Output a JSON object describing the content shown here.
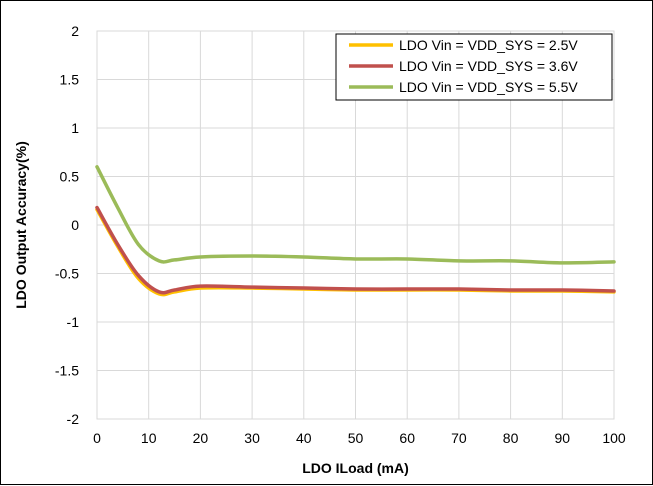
{
  "chart_data": {
    "type": "line",
    "title": "",
    "xlabel": "LDO ILoad (mA)",
    "ylabel": "LDO Output Accuracy(%)",
    "xlim": [
      0,
      100
    ],
    "ylim": [
      -2,
      2
    ],
    "x_ticks": [
      0,
      10,
      20,
      30,
      40,
      50,
      60,
      70,
      80,
      90,
      100
    ],
    "x_tick_labels": [
      "0",
      "10",
      "20",
      "30",
      "40",
      "50",
      "60",
      "70",
      "80",
      "90",
      "100"
    ],
    "y_ticks": [
      -2,
      -1.5,
      -1,
      -0.5,
      0,
      0.5,
      1,
      1.5,
      2
    ],
    "y_tick_labels": [
      "-2",
      "-1.5",
      "-1",
      "-0.5",
      "0",
      "0.5",
      "1",
      "1.5",
      "2"
    ],
    "grid": true,
    "legend_position": "top-right",
    "series": [
      {
        "name": "LDO Vin = VDD_SYS = 2.5V",
        "color": "#FFC000",
        "x": [
          0,
          4,
          8,
          12,
          15,
          20,
          30,
          40,
          50,
          60,
          70,
          80,
          90,
          100
        ],
        "y": [
          0.16,
          -0.22,
          -0.55,
          -0.71,
          -0.69,
          -0.65,
          -0.65,
          -0.66,
          -0.67,
          -0.67,
          -0.67,
          -0.68,
          -0.68,
          -0.69
        ]
      },
      {
        "name": "LDO Vin = VDD_SYS = 3.6V",
        "color": "#C0504D",
        "x": [
          0,
          4,
          8,
          12,
          15,
          20,
          30,
          40,
          50,
          60,
          70,
          80,
          90,
          100
        ],
        "y": [
          0.18,
          -0.2,
          -0.52,
          -0.69,
          -0.67,
          -0.63,
          -0.64,
          -0.65,
          -0.66,
          -0.66,
          -0.66,
          -0.67,
          -0.67,
          -0.68
        ]
      },
      {
        "name": "LDO Vin = VDD_SYS = 5.5V",
        "color": "#9BBB59",
        "x": [
          0,
          4,
          8,
          12,
          15,
          20,
          30,
          40,
          50,
          60,
          70,
          80,
          90,
          100
        ],
        "y": [
          0.6,
          0.18,
          -0.2,
          -0.37,
          -0.36,
          -0.33,
          -0.32,
          -0.33,
          -0.35,
          -0.35,
          -0.37,
          -0.37,
          -0.39,
          -0.38
        ]
      }
    ]
  }
}
